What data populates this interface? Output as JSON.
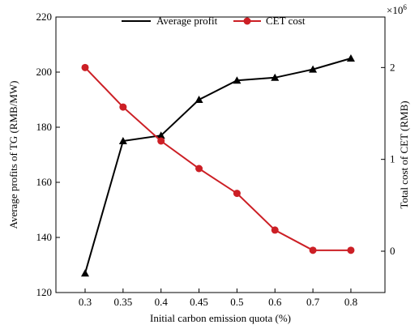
{
  "chart_data": {
    "type": "line",
    "x_label": "Initial carbon emission quota (%)",
    "y_left_label": "Average profits of TG (RMB/MW)",
    "y_right_label": "Total cost of CET (RMB)",
    "y_right_multiplier": "×10",
    "y_right_exponent": "6",
    "categories": [
      "0.3",
      "0.35",
      "0.4",
      "0.45",
      "0.5",
      "0.6",
      "0.7",
      "0.8"
    ],
    "y_left_range": [
      120,
      220
    ],
    "y_left_ticks": [
      "120",
      "140",
      "160",
      "180",
      "200",
      "220"
    ],
    "y_right_range": [
      -0.45,
      2.55
    ],
    "y_right_ticks": [
      "0",
      "1",
      "2"
    ],
    "grid": false,
    "legend_position": "top-center",
    "series": [
      {
        "name": "Average profit",
        "axis": "left",
        "marker": "triangle",
        "color": "#000000",
        "values": [
          127,
          175,
          177,
          190,
          197,
          198,
          201,
          205
        ]
      },
      {
        "name": "CET cost",
        "axis": "right",
        "marker": "circle",
        "color": "#cc1f25",
        "values": [
          2.0,
          1.57,
          1.2,
          0.9,
          0.63,
          0.23,
          0.01,
          0.01
        ]
      }
    ]
  }
}
